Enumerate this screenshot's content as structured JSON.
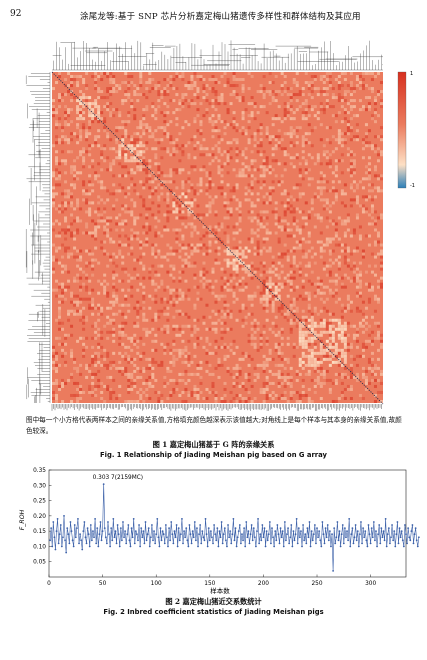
{
  "header": {
    "page_number": "92",
    "running_title": "涂尾龙等:基于 SNP 芯片分析嘉定梅山猪遗传多样性和群体结构及其应用"
  },
  "figure1": {
    "note": "图中每一个小方格代表两样本之间的亲缘关系值,方格填充颜色越深表示该值越大;对角线上是每个样本与其本身的亲缘关系值,故颜色较深。",
    "caption_zh": "图 1  嘉定梅山猪基于 G 阵的亲缘关系",
    "caption_en": "Fig. 1    Relationship of Jiading Meishan pig based on G array",
    "colorbar_top_label": "1",
    "colorbar_bottom_label": "-1",
    "colors": {
      "low": "#2c7fb8",
      "mid": "#fde0c5",
      "high": "#d7301f",
      "base": "#eb7b5e"
    }
  },
  "figure2": {
    "caption_zh": "图 2  嘉定梅山猪近交系数统计",
    "caption_en": "Fig. 2    Inbred coefficient statistics of Jiading Meishan pigs"
  },
  "chart_data": {
    "type": "line",
    "xlabel": "样本数",
    "ylabel": "F_ROH",
    "xlim": [
      0,
      333
    ],
    "ylim": [
      0,
      0.35
    ],
    "x_ticks": [
      0,
      50,
      100,
      150,
      200,
      250,
      300
    ],
    "y_ticks": [
      0.05,
      0.1,
      0.15,
      0.2,
      0.25,
      0.3,
      0.35
    ],
    "annotation": {
      "text": "0.303 7(2159MC)",
      "x": 50,
      "y": 0.3037
    },
    "color": "#3a5fa8",
    "series": [
      {
        "values": [
          0.12,
          0.16,
          0.1,
          0.18,
          0.13,
          0.09,
          0.15,
          0.19,
          0.11,
          0.14,
          0.17,
          0.1,
          0.13,
          0.2,
          0.12,
          0.08,
          0.16,
          0.14,
          0.11,
          0.18,
          0.15,
          0.12,
          0.1,
          0.17,
          0.13,
          0.16,
          0.19,
          0.11,
          0.14,
          0.12,
          0.09,
          0.15,
          0.18,
          0.13,
          0.11,
          0.16,
          0.14,
          0.1,
          0.17,
          0.12,
          0.15,
          0.13,
          0.19,
          0.11,
          0.16,
          0.1,
          0.14,
          0.18,
          0.12,
          0.15,
          0.3037,
          0.16,
          0.13,
          0.11,
          0.18,
          0.14,
          0.1,
          0.16,
          0.12,
          0.19,
          0.13,
          0.15,
          0.11,
          0.17,
          0.14,
          0.1,
          0.16,
          0.12,
          0.18,
          0.13,
          0.15,
          0.11,
          0.14,
          0.17,
          0.12,
          0.1,
          0.16,
          0.13,
          0.19,
          0.11,
          0.15,
          0.14,
          0.12,
          0.17,
          0.1,
          0.16,
          0.13,
          0.15,
          0.11,
          0.18,
          0.12,
          0.14,
          0.16,
          0.1,
          0.13,
          0.17,
          0.12,
          0.15,
          0.11,
          0.14,
          0.19,
          0.13,
          0.1,
          0.16,
          0.12,
          0.15,
          0.14,
          0.11,
          0.17,
          0.13,
          0.1,
          0.16,
          0.12,
          0.18,
          0.14,
          0.11,
          0.15,
          0.13,
          0.17,
          0.1,
          0.16,
          0.12,
          0.14,
          0.19,
          0.11,
          0.15,
          0.13,
          0.16,
          0.12,
          0.1,
          0.17,
          0.14,
          0.11,
          0.15,
          0.13,
          0.18,
          0.12,
          0.16,
          0.1,
          0.14,
          0.17,
          0.11,
          0.15,
          0.13,
          0.12,
          0.19,
          0.14,
          0.1,
          0.16,
          0.12,
          0.15,
          0.13,
          0.11,
          0.17,
          0.14,
          0.12,
          0.16,
          0.1,
          0.15,
          0.13,
          0.18,
          0.11,
          0.14,
          0.16,
          0.12,
          0.1,
          0.17,
          0.13,
          0.15,
          0.11,
          0.14,
          0.19,
          0.12,
          0.16,
          0.1,
          0.13,
          0.15,
          0.17,
          0.11,
          0.14,
          0.12,
          0.16,
          0.1,
          0.18,
          0.13,
          0.15,
          0.11,
          0.14,
          0.17,
          0.12,
          0.16,
          0.13,
          0.1,
          0.15,
          0.19,
          0.11,
          0.14,
          0.12,
          0.17,
          0.13,
          0.16,
          0.1,
          0.15,
          0.12,
          0.14,
          0.18,
          0.11,
          0.16,
          0.13,
          0.1,
          0.15,
          0.12,
          0.17,
          0.14,
          0.11,
          0.16,
          0.13,
          0.15,
          0.1,
          0.18,
          0.12,
          0.14,
          0.16,
          0.11,
          0.13,
          0.17,
          0.1,
          0.15,
          0.12,
          0.14,
          0.19,
          0.11,
          0.16,
          0.13,
          0.15,
          0.1,
          0.17,
          0.12,
          0.14,
          0.11,
          0.16,
          0.13,
          0.18,
          0.1,
          0.15,
          0.12,
          0.14,
          0.17,
          0.11,
          0.16,
          0.13,
          0.15,
          0.12,
          0.1,
          0.18,
          0.14,
          0.11,
          0.16,
          0.13,
          0.17,
          0.12,
          0.15,
          0.1,
          0.14,
          0.02,
          0.16,
          0.11,
          0.13,
          0.18,
          0.12,
          0.15,
          0.1,
          0.14,
          0.17,
          0.11,
          0.16,
          0.13,
          0.15,
          0.12,
          0.19,
          0.1,
          0.14,
          0.16,
          0.11,
          0.13,
          0.17,
          0.12,
          0.15,
          0.1,
          0.14,
          0.18,
          0.11,
          0.16,
          0.13,
          0.15,
          0.12,
          0.1,
          0.17,
          0.14,
          0.11,
          0.16,
          0.13,
          0.18,
          0.12,
          0.15,
          0.1,
          0.14,
          0.17,
          0.11,
          0.16,
          0.13,
          0.15,
          0.12,
          0.19,
          0.1,
          0.14,
          0.16,
          0.11,
          0.13,
          0.17,
          0.12,
          0.15,
          0.1,
          0.14,
          0.18,
          0.11,
          0.16,
          0.13,
          0.15,
          0.12,
          0.1,
          0.17,
          0.14,
          0.11,
          0.16,
          0.13,
          0.12,
          0.15,
          0.17,
          0.11,
          0.14,
          0.16,
          0.12,
          0.1,
          0.13
        ]
      }
    ]
  }
}
